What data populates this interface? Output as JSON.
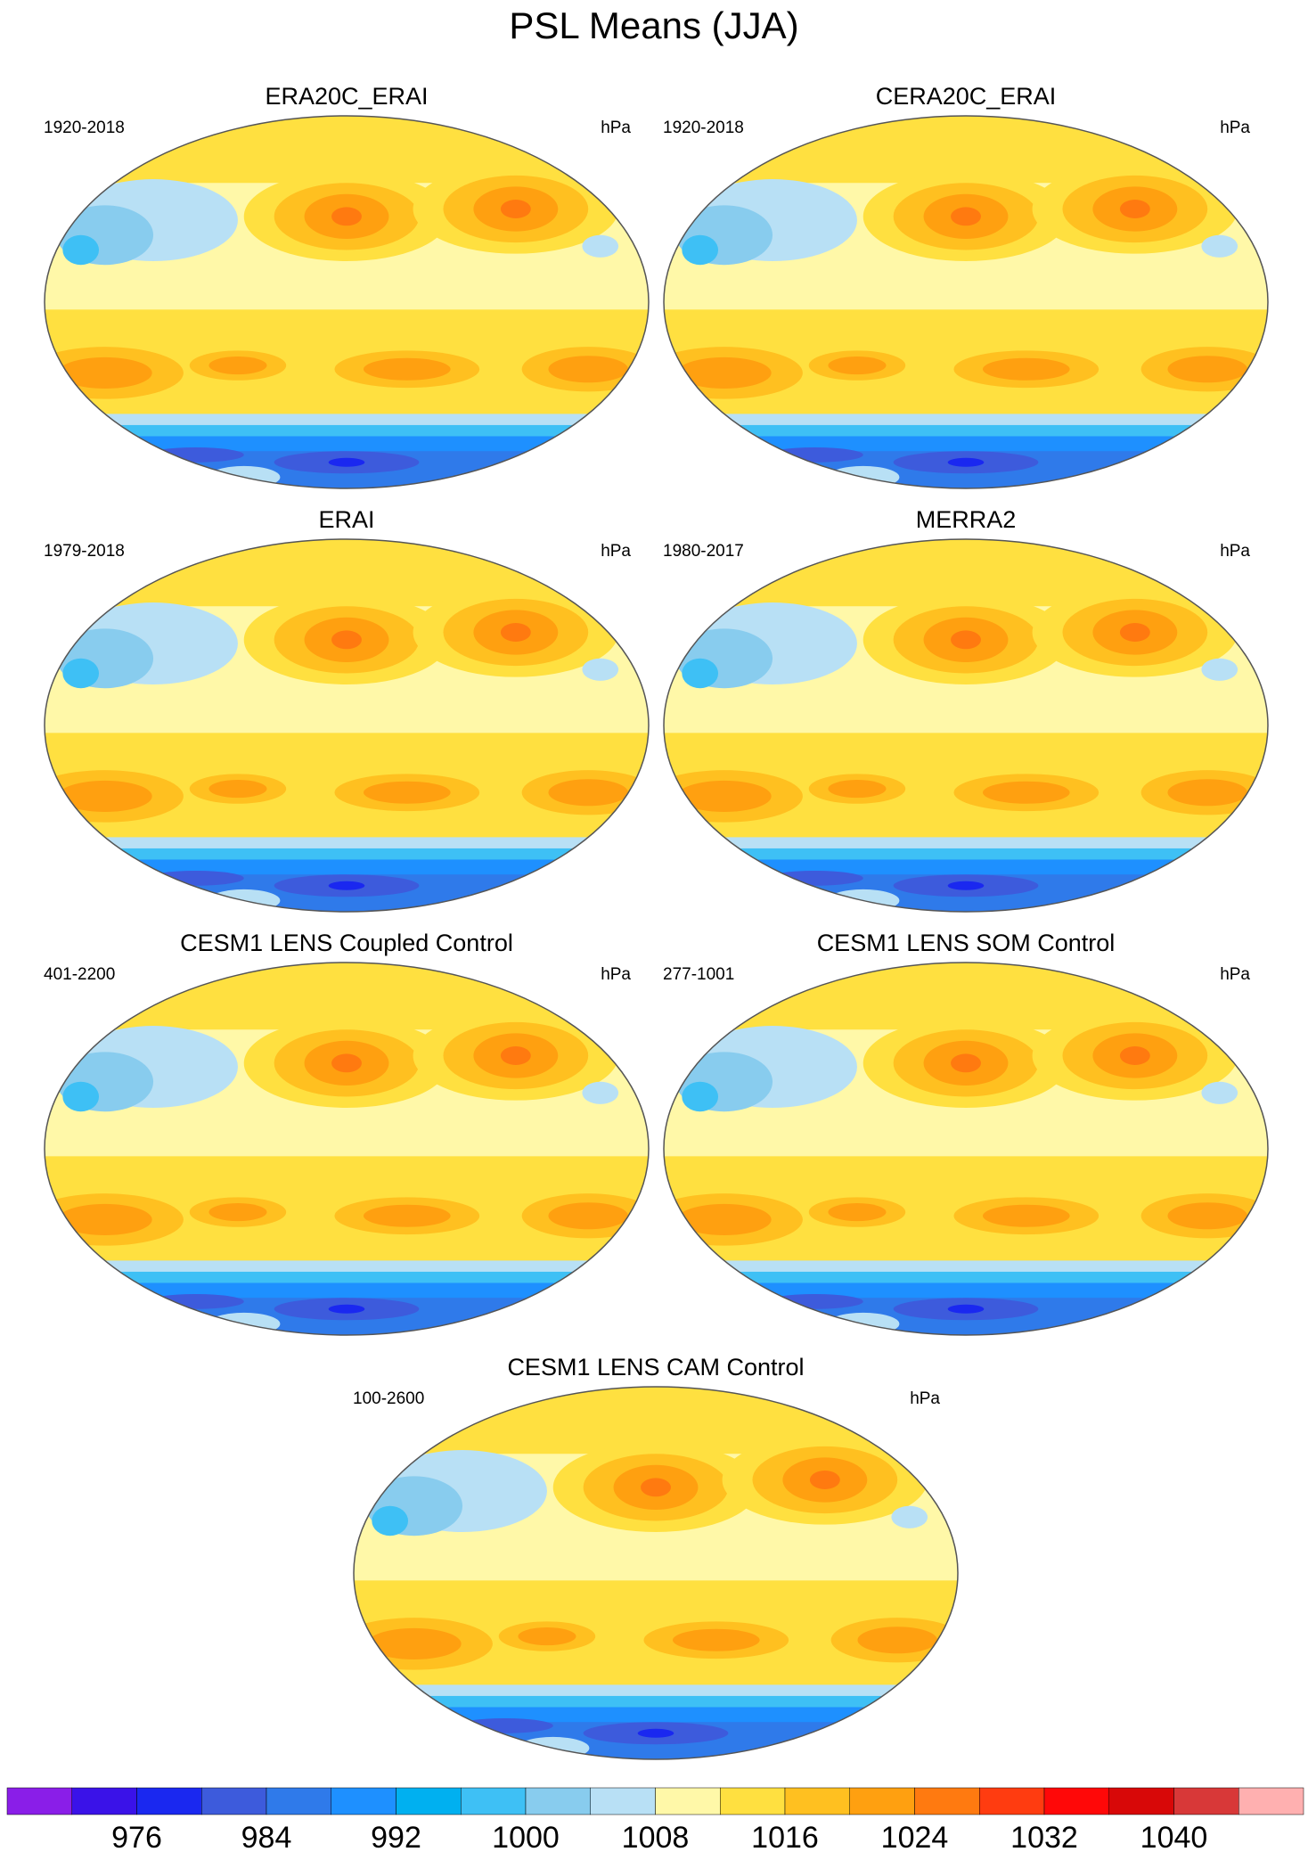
{
  "title": "PSL Means (JJA)",
  "panels": [
    {
      "title": "ERA20C_ERAI",
      "period": "1920-2018",
      "units": "hPa"
    },
    {
      "title": "CERA20C_ERAI",
      "period": "1920-2018",
      "units": "hPa"
    },
    {
      "title": "ERAI",
      "period": "1979-2018",
      "units": "hPa"
    },
    {
      "title": "MERRA2",
      "period": "1980-2017",
      "units": "hPa"
    },
    {
      "title": "CESM1 LENS Coupled Control",
      "period": "401-2200",
      "units": "hPa"
    },
    {
      "title": "CESM1 LENS SOM Control",
      "period": "277-1001",
      "units": "hPa"
    },
    {
      "title": "CESM1 LENS CAM Control",
      "period": "100-2600",
      "units": "hPa"
    }
  ],
  "colorbar": {
    "colors": [
      "#8a1ee8",
      "#3a12e8",
      "#1a28f0",
      "#3d5bdc",
      "#2f7aea",
      "#1e90ff",
      "#00b0f0",
      "#3ec0f5",
      "#88ccee",
      "#b8e0f5",
      "#fff8a8",
      "#ffe040",
      "#ffc020",
      "#ffa010",
      "#ff7a10",
      "#ff3c10",
      "#ff0808",
      "#d80808",
      "#d83838",
      "#ffb0b0"
    ],
    "ticks": [
      976,
      984,
      992,
      1000,
      1008,
      1016,
      1024,
      1032,
      1040
    ]
  }
}
